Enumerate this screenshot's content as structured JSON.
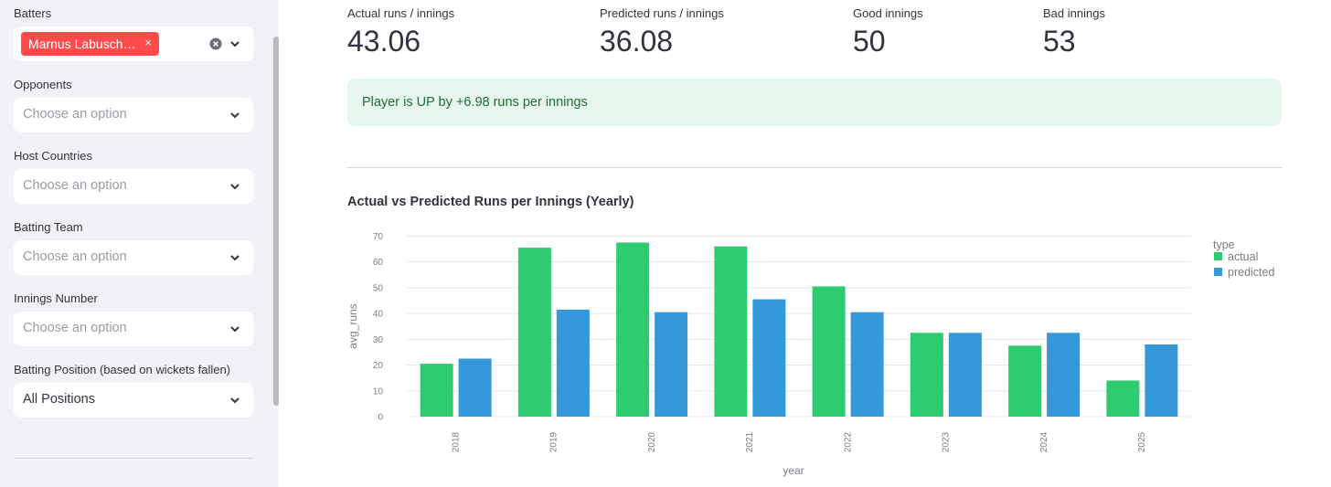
{
  "sidebar": {
    "batters": {
      "label": "Batters",
      "selected_tag": "Marnus Labusch…",
      "tag_remove": "×"
    },
    "opponents": {
      "label": "Opponents",
      "placeholder": "Choose an option"
    },
    "host_countries": {
      "label": "Host Countries",
      "placeholder": "Choose an option"
    },
    "batting_team": {
      "label": "Batting Team",
      "placeholder": "Choose an option"
    },
    "innings_number": {
      "label": "Innings Number",
      "placeholder": "Choose an option"
    },
    "batting_position": {
      "label": "Batting Position (based on wickets fallen)",
      "value": "All Positions"
    }
  },
  "metrics": [
    {
      "label": "Actual runs / innings",
      "value": "43.06"
    },
    {
      "label": "Predicted runs / innings",
      "value": "36.08"
    },
    {
      "label": "Good innings",
      "value": "50"
    },
    {
      "label": "Bad innings",
      "value": "53"
    }
  ],
  "alert": {
    "text": "Player is UP by +6.98 runs per innings"
  },
  "chart_title": "Actual vs Predicted Runs per Innings (Yearly)",
  "chart_data": {
    "type": "bar",
    "categories": [
      "2018",
      "2019",
      "2020",
      "2021",
      "2022",
      "2023",
      "2024",
      "2025"
    ],
    "series": [
      {
        "name": "actual",
        "color": "#2ecc71",
        "values": [
          20.5,
          65.5,
          67.5,
          66,
          50.5,
          32.5,
          27.5,
          14
        ]
      },
      {
        "name": "predicted",
        "color": "#3498db",
        "values": [
          22.5,
          41.5,
          40.5,
          45.5,
          40.5,
          32.5,
          32.5,
          28
        ]
      }
    ],
    "xlabel": "year",
    "ylabel": "avg_runs",
    "legend_title": "type",
    "yticks": [
      "0",
      "10",
      "20",
      "30",
      "40",
      "50",
      "60",
      "70"
    ],
    "ylim": [
      0,
      70
    ],
    "grid": true,
    "legend_position": "top-right"
  }
}
